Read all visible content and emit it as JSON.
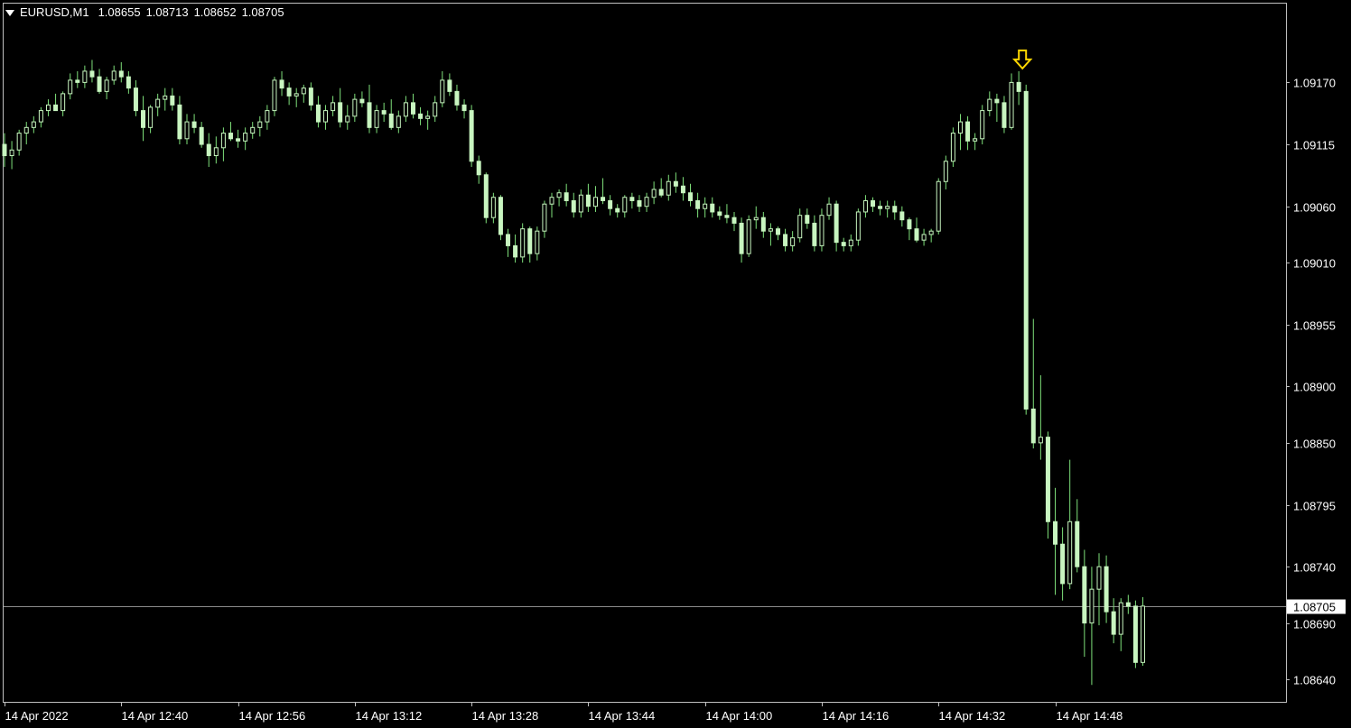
{
  "header": {
    "symbol": "EURUSD,M1",
    "ohlc": [
      "1.08655",
      "1.08713",
      "1.08652",
      "1.08705"
    ]
  },
  "colors": {
    "background": "#000000",
    "candle": "#c8f5c0",
    "wick": "#7ee07a",
    "frame": "#c0c0c0",
    "arrow": "#ffd800",
    "price_line": "#8c8c8c",
    "bid_label_bg": "#ffffff",
    "bid_label_text": "#000000",
    "axis_text": "#ffffff"
  },
  "chart_data": {
    "type": "candlestick",
    "symbol": "EURUSD",
    "timeframe": "M1",
    "current_price": 1.08705,
    "current_price_label": "1.08705",
    "ylim": [
      1.0862,
      1.0924
    ],
    "y_ticks": [
      {
        "value": 1.0917,
        "label": "1.09170"
      },
      {
        "value": 1.09115,
        "label": "1.09115"
      },
      {
        "value": 1.0906,
        "label": "1.09060"
      },
      {
        "value": 1.0901,
        "label": "1.09010"
      },
      {
        "value": 1.08955,
        "label": "1.08955"
      },
      {
        "value": 1.089,
        "label": "1.08900"
      },
      {
        "value": 1.0885,
        "label": "1.08850"
      },
      {
        "value": 1.08795,
        "label": "1.08795"
      },
      {
        "value": 1.0874,
        "label": "1.08740"
      },
      {
        "value": 1.0869,
        "label": "1.08690"
      },
      {
        "value": 1.0864,
        "label": "1.08640"
      }
    ],
    "x_ticks": [
      {
        "index": 0,
        "label": "14 Apr 2022"
      },
      {
        "index": 16,
        "label": "14 Apr 12:40"
      },
      {
        "index": 32,
        "label": "14 Apr 12:56"
      },
      {
        "index": 48,
        "label": "14 Apr 13:12"
      },
      {
        "index": 64,
        "label": "14 Apr 13:28"
      },
      {
        "index": 80,
        "label": "14 Apr 13:44"
      },
      {
        "index": 96,
        "label": "14 Apr 14:00"
      },
      {
        "index": 112,
        "label": "14 Apr 14:16"
      },
      {
        "index": 128,
        "label": "14 Apr 14:32"
      },
      {
        "index": 144,
        "label": "14 Apr 14:48"
      }
    ],
    "marker": {
      "type": "arrow-down",
      "index": 140
    },
    "candles": [
      [
        1.09115,
        1.09125,
        1.09095,
        1.09105
      ],
      [
        1.09105,
        1.09118,
        1.09093,
        1.0911
      ],
      [
        1.0911,
        1.09128,
        1.09105,
        1.09125
      ],
      [
        1.09125,
        1.09135,
        1.09115,
        1.0913
      ],
      [
        1.0913,
        1.0914,
        1.09125,
        1.09135
      ],
      [
        1.09135,
        1.09148,
        1.0913,
        1.09145
      ],
      [
        1.09145,
        1.09155,
        1.0914,
        1.0915
      ],
      [
        1.0915,
        1.0916,
        1.09145,
        1.09145
      ],
      [
        1.09145,
        1.09162,
        1.0914,
        1.0916
      ],
      [
        1.0916,
        1.09178,
        1.09155,
        1.09172
      ],
      [
        1.09172,
        1.0918,
        1.09165,
        1.0917
      ],
      [
        1.0917,
        1.09185,
        1.09165,
        1.0918
      ],
      [
        1.0918,
        1.0919,
        1.0917,
        1.09175
      ],
      [
        1.09175,
        1.09182,
        1.0916,
        1.09162
      ],
      [
        1.09162,
        1.09175,
        1.09155,
        1.09172
      ],
      [
        1.09172,
        1.09185,
        1.09168,
        1.0918
      ],
      [
        1.0918,
        1.09188,
        1.0917,
        1.09175
      ],
      [
        1.09175,
        1.0918,
        1.0916,
        1.09165
      ],
      [
        1.09165,
        1.09172,
        1.0914,
        1.09145
      ],
      [
        1.09145,
        1.09158,
        1.09118,
        1.0913
      ],
      [
        1.0913,
        1.0915,
        1.09125,
        1.09148
      ],
      [
        1.09148,
        1.0916,
        1.0914,
        1.09155
      ],
      [
        1.09155,
        1.09165,
        1.09145,
        1.09158
      ],
      [
        1.09158,
        1.09165,
        1.09145,
        1.0915
      ],
      [
        1.0915,
        1.09158,
        1.09115,
        1.0912
      ],
      [
        1.0912,
        1.09142,
        1.09115,
        1.09135
      ],
      [
        1.09135,
        1.09142,
        1.09125,
        1.0913
      ],
      [
        1.0913,
        1.09135,
        1.09112,
        1.09115
      ],
      [
        1.09115,
        1.09125,
        1.09095,
        1.09105
      ],
      [
        1.09105,
        1.09122,
        1.09098,
        1.09112
      ],
      [
        1.09112,
        1.0913,
        1.091,
        1.09125
      ],
      [
        1.09125,
        1.09135,
        1.09118,
        1.0912
      ],
      [
        1.0912,
        1.09128,
        1.09112,
        1.09118
      ],
      [
        1.09118,
        1.0913,
        1.0911,
        1.09125
      ],
      [
        1.09125,
        1.09135,
        1.0912,
        1.0913
      ],
      [
        1.0913,
        1.0914,
        1.09122,
        1.09135
      ],
      [
        1.09135,
        1.0915,
        1.09128,
        1.09145
      ],
      [
        1.09145,
        1.09175,
        1.0914,
        1.09172
      ],
      [
        1.09172,
        1.0918,
        1.09158,
        1.09165
      ],
      [
        1.09165,
        1.0917,
        1.0915,
        1.09158
      ],
      [
        1.09158,
        1.09165,
        1.09148,
        1.0916
      ],
      [
        1.0916,
        1.09168,
        1.09152,
        1.09165
      ],
      [
        1.09165,
        1.0917,
        1.09145,
        1.0915
      ],
      [
        1.0915,
        1.09158,
        1.0913,
        1.09135
      ],
      [
        1.09135,
        1.0915,
        1.09128,
        1.09145
      ],
      [
        1.09145,
        1.09158,
        1.0914,
        1.09152
      ],
      [
        1.09152,
        1.09165,
        1.0913,
        1.09135
      ],
      [
        1.09135,
        1.0915,
        1.09128,
        1.0914
      ],
      [
        1.0914,
        1.0916,
        1.09135,
        1.09155
      ],
      [
        1.09155,
        1.09162,
        1.09148,
        1.09152
      ],
      [
        1.09152,
        1.09168,
        1.09125,
        1.0913
      ],
      [
        1.0913,
        1.0915,
        1.09125,
        1.09145
      ],
      [
        1.09145,
        1.09152,
        1.09135,
        1.09142
      ],
      [
        1.09142,
        1.09155,
        1.09128,
        1.0913
      ],
      [
        1.0913,
        1.09145,
        1.09125,
        1.0914
      ],
      [
        1.0914,
        1.09158,
        1.09135,
        1.09152
      ],
      [
        1.09152,
        1.0916,
        1.09138,
        1.09142
      ],
      [
        1.09142,
        1.09148,
        1.09132,
        1.09138
      ],
      [
        1.09138,
        1.09145,
        1.09128,
        1.0914
      ],
      [
        1.0914,
        1.09158,
        1.09135,
        1.09152
      ],
      [
        1.09152,
        1.0918,
        1.09148,
        1.09172
      ],
      [
        1.09172,
        1.09178,
        1.09158,
        1.09162
      ],
      [
        1.09162,
        1.09168,
        1.09145,
        1.0915
      ],
      [
        1.0915,
        1.09155,
        1.09138,
        1.09145
      ],
      [
        1.09145,
        1.0915,
        1.09095,
        1.091
      ],
      [
        1.091,
        1.09105,
        1.0908,
        1.09088
      ],
      [
        1.09088,
        1.0909,
        1.09045,
        1.0905
      ],
      [
        1.0905,
        1.09072,
        1.09045,
        1.09068
      ],
      [
        1.09068,
        1.0907,
        1.0903,
        1.09035
      ],
      [
        1.09035,
        1.0904,
        1.09015,
        1.09025
      ],
      [
        1.09025,
        1.09035,
        1.0901,
        1.09015
      ],
      [
        1.09015,
        1.09045,
        1.0901,
        1.0904
      ],
      [
        1.0904,
        1.09042,
        1.0901,
        1.09018
      ],
      [
        1.09018,
        1.09042,
        1.09012,
        1.09038
      ],
      [
        1.09038,
        1.09065,
        1.09032,
        1.09062
      ],
      [
        1.09062,
        1.09072,
        1.0905,
        1.09068
      ],
      [
        1.09068,
        1.09075,
        1.0906,
        1.09072
      ],
      [
        1.09072,
        1.0908,
        1.0906,
        1.09065
      ],
      [
        1.09065,
        1.09072,
        1.0905,
        1.09055
      ],
      [
        1.09055,
        1.09075,
        1.0905,
        1.0907
      ],
      [
        1.0907,
        1.0908,
        1.09055,
        1.0906
      ],
      [
        1.0906,
        1.09078,
        1.09055,
        1.09068
      ],
      [
        1.09068,
        1.09085,
        1.09062,
        1.09065
      ],
      [
        1.09065,
        1.0907,
        1.09052,
        1.09058
      ],
      [
        1.09058,
        1.09062,
        1.0905,
        1.09055
      ],
      [
        1.09055,
        1.0907,
        1.0905,
        1.09068
      ],
      [
        1.09068,
        1.09072,
        1.09058,
        1.09065
      ],
      [
        1.09065,
        1.0907,
        1.09055,
        1.0906
      ],
      [
        1.0906,
        1.09072,
        1.09055,
        1.09068
      ],
      [
        1.09068,
        1.09082,
        1.09062,
        1.09075
      ],
      [
        1.09075,
        1.09085,
        1.09068,
        1.0907
      ],
      [
        1.0907,
        1.09088,
        1.09065,
        1.09082
      ],
      [
        1.09082,
        1.0909,
        1.09072,
        1.09078
      ],
      [
        1.09078,
        1.09086,
        1.09065,
        1.09072
      ],
      [
        1.09072,
        1.0908,
        1.0906,
        1.09065
      ],
      [
        1.09065,
        1.09072,
        1.0905,
        1.09058
      ],
      [
        1.09058,
        1.09068,
        1.0905,
        1.09062
      ],
      [
        1.09062,
        1.09068,
        1.0905,
        1.09055
      ],
      [
        1.09055,
        1.0906,
        1.09048,
        1.09052
      ],
      [
        1.09052,
        1.09062,
        1.09045,
        1.0905
      ],
      [
        1.0905,
        1.09055,
        1.09038,
        1.09045
      ],
      [
        1.09045,
        1.0905,
        1.0901,
        1.09018
      ],
      [
        1.09018,
        1.09052,
        1.09015,
        1.09048
      ],
      [
        1.09048,
        1.0906,
        1.0904,
        1.0905
      ],
      [
        1.0905,
        1.09055,
        1.09032,
        1.09038
      ],
      [
        1.09038,
        1.09045,
        1.09025,
        1.0904
      ],
      [
        1.0904,
        1.09042,
        1.0903,
        1.09035
      ],
      [
        1.09035,
        1.0904,
        1.0902,
        1.09025
      ],
      [
        1.09025,
        1.09038,
        1.0902,
        1.09032
      ],
      [
        1.09032,
        1.09058,
        1.09028,
        1.09052
      ],
      [
        1.09052,
        1.09058,
        1.0904,
        1.09045
      ],
      [
        1.09045,
        1.09052,
        1.0902,
        1.09025
      ],
      [
        1.09025,
        1.09058,
        1.0902,
        1.09052
      ],
      [
        1.09052,
        1.09068,
        1.09048,
        1.09062
      ],
      [
        1.09062,
        1.09065,
        1.0902,
        1.09028
      ],
      [
        1.09028,
        1.09032,
        1.0902,
        1.09025
      ],
      [
        1.09025,
        1.09035,
        1.0902,
        1.0903
      ],
      [
        1.0903,
        1.09058,
        1.09025,
        1.09055
      ],
      [
        1.09055,
        1.0907,
        1.0905,
        1.09065
      ],
      [
        1.09065,
        1.09068,
        1.09055,
        1.0906
      ],
      [
        1.0906,
        1.09065,
        1.09052,
        1.09058
      ],
      [
        1.09058,
        1.09065,
        1.0905,
        1.0906
      ],
      [
        1.0906,
        1.09065,
        1.09048,
        1.09055
      ],
      [
        1.09055,
        1.0906,
        1.09042,
        1.09048
      ],
      [
        1.09048,
        1.0905,
        1.0903,
        1.0904
      ],
      [
        1.0904,
        1.0905,
        1.09028,
        1.0903
      ],
      [
        1.0903,
        1.0904,
        1.09025,
        1.09035
      ],
      [
        1.09035,
        1.0904,
        1.09028,
        1.09038
      ],
      [
        1.09038,
        1.09085,
        1.09035,
        1.09082
      ],
      [
        1.09082,
        1.09105,
        1.09075,
        1.091
      ],
      [
        1.091,
        1.0913,
        1.09095,
        1.09125
      ],
      [
        1.09125,
        1.09142,
        1.0911,
        1.09135
      ],
      [
        1.09135,
        1.0914,
        1.0911,
        1.09118
      ],
      [
        1.09118,
        1.09125,
        1.0911,
        1.0912
      ],
      [
        1.0912,
        1.0915,
        1.09115,
        1.09145
      ],
      [
        1.09145,
        1.09162,
        1.0914,
        1.09155
      ],
      [
        1.09155,
        1.0916,
        1.09135,
        1.09152
      ],
      [
        1.09152,
        1.09158,
        1.09125,
        1.0913
      ],
      [
        1.0913,
        1.09178,
        1.09128,
        1.0917
      ],
      [
        1.0917,
        1.0918,
        1.0915,
        1.09162
      ],
      [
        1.09162,
        1.09168,
        1.08875,
        1.0888
      ],
      [
        1.0888,
        1.0896,
        1.08845,
        1.0885
      ],
      [
        1.0885,
        1.0891,
        1.08835,
        1.08855
      ],
      [
        1.08855,
        1.0886,
        1.08765,
        1.0878
      ],
      [
        1.0878,
        1.0881,
        1.08715,
        1.0876
      ],
      [
        1.0876,
        1.08775,
        1.0871,
        1.08725
      ],
      [
        1.08725,
        1.08835,
        1.0872,
        1.0878
      ],
      [
        1.0878,
        1.088,
        1.08735,
        1.0874
      ],
      [
        1.0874,
        1.08755,
        1.0866,
        1.0869
      ],
      [
        1.0869,
        1.0874,
        1.08635,
        1.0872
      ],
      [
        1.0872,
        1.08752,
        1.08688,
        1.0874
      ],
      [
        1.0874,
        1.0875,
        1.0869,
        1.087
      ],
      [
        1.087,
        1.08712,
        1.08672,
        1.0868
      ],
      [
        1.0868,
        1.08712,
        1.08665,
        1.08708
      ],
      [
        1.08708,
        1.08715,
        1.08698,
        1.08705
      ],
      [
        1.08705,
        1.0871,
        1.0865,
        1.08655
      ],
      [
        1.08655,
        1.08713,
        1.08652,
        1.08705
      ]
    ]
  }
}
